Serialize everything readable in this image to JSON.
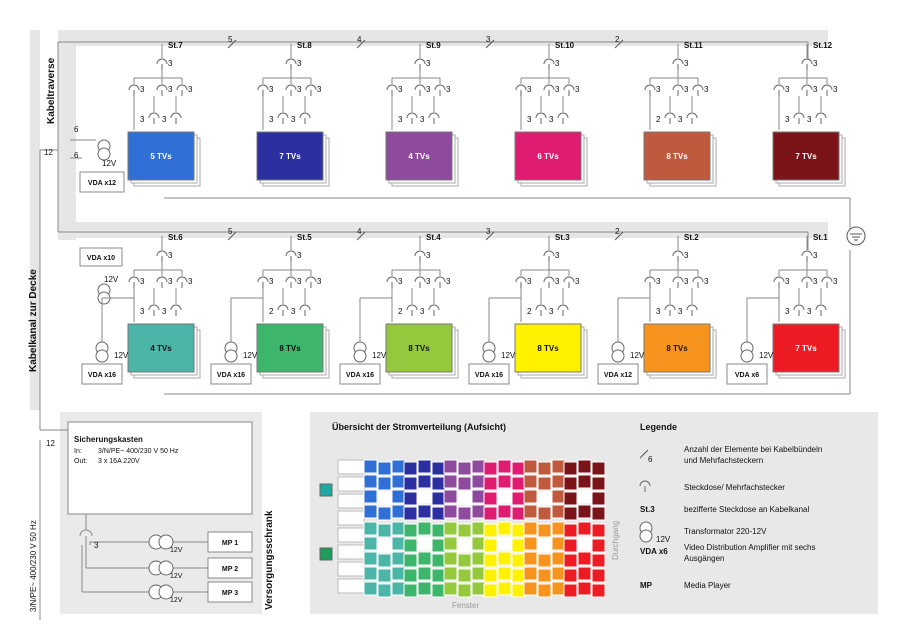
{
  "labels": {
    "kabeltraverse": "Kabeltraverse",
    "kabelkanal": "Kabelkanal zur Decke",
    "versorgungsschrank": "Versorgungsschrank",
    "mains_vertical": "3/N/PE~ 400/230 V 50 Hz",
    "voltage": "12V",
    "side_bundle": "6",
    "left_bundle": "12",
    "socket_bundle": "3"
  },
  "top_row": {
    "bundles": [
      "5",
      "4",
      "3",
      "2"
    ],
    "stations": [
      {
        "id": "St.7",
        "tvs": "5 TVs",
        "color": "#2F6FD6",
        "branch": [
          "3",
          "3"
        ]
      },
      {
        "id": "St.8",
        "tvs": "7 TVs",
        "color": "#2B2FA0",
        "branch": [
          "3",
          "3"
        ]
      },
      {
        "id": "St.9",
        "tvs": "4 TVs",
        "color": "#8E4A9C",
        "branch": [
          "3",
          "3"
        ]
      },
      {
        "id": "St.10",
        "tvs": "6 TVs",
        "color": "#E01C70",
        "branch": [
          "3",
          "3"
        ]
      },
      {
        "id": "St.11",
        "tvs": "8 TVs",
        "color": "#C05A3E",
        "branch": [
          "2",
          "3"
        ]
      },
      {
        "id": "St.12",
        "tvs": "7 TVs",
        "color": "#7A1419",
        "branch": [
          "3",
          "3"
        ]
      }
    ],
    "vda": "VDA x12"
  },
  "bottom_row": {
    "bundles": [
      "5",
      "4",
      "3",
      "2"
    ],
    "stations": [
      {
        "id": "St.6",
        "tvs": "4 TVs",
        "color": "#4BB5A8",
        "vda": "VDA x16",
        "branch": [
          "3",
          "3"
        ]
      },
      {
        "id": "St.5",
        "tvs": "8 TVs",
        "color": "#3DB56A",
        "vda": "VDA x16",
        "branch": [
          "2",
          "3"
        ]
      },
      {
        "id": "St.4",
        "tvs": "8 TVs",
        "color": "#95C93D",
        "vda": "VDA x16",
        "branch": [
          "2",
          "3"
        ]
      },
      {
        "id": "St.3",
        "tvs": "8 TVs",
        "color": "#FFF200",
        "vda": "VDA x16",
        "branch": [
          "2",
          "3"
        ]
      },
      {
        "id": "St.2",
        "tvs": "8 TVs",
        "color": "#F7941D",
        "vda": "VDA x12",
        "branch": [
          "3",
          "3"
        ]
      },
      {
        "id": "St.1",
        "tvs": "7 TVs",
        "color": "#ED1C24",
        "vda": "VDA x6",
        "branch": [
          "3",
          "3"
        ]
      }
    ],
    "vda_extra": "VDA x10"
  },
  "cabinet": {
    "title": "Sicherungskasten",
    "in_label": "In:",
    "in_value": "3/N/PE~ 400/230 V 50 Hz",
    "out_label": "Out:",
    "out_value": "3 x 16A 220V",
    "players": [
      "MP 1",
      "MP 2",
      "MP 3"
    ]
  },
  "overview": {
    "title": "Übersicht der Stromverteilung (Aufsicht)",
    "fenster": "Fenster",
    "durchgang": "Durchgang"
  },
  "legend": {
    "title": "Legende",
    "items": [
      {
        "icon": "bundle",
        "sample": "6",
        "text": "Anzahl der Elemente bei Kabelbündeln und Mehrfachsteckern"
      },
      {
        "icon": "socket",
        "sample": "",
        "text": "Steckdose/ Mehrfachstecker"
      },
      {
        "icon": "label",
        "sample": "St.3",
        "text": "bezifferte Steckdose an Kabelkanal"
      },
      {
        "icon": "transformer",
        "sample": "12V",
        "text": "Transformator 220-12V"
      },
      {
        "icon": "label",
        "sample": "VDA x6",
        "text": "Video Distribution Amplifier mit sechs Ausgängen"
      },
      {
        "icon": "label",
        "sample": "MP",
        "text": "Media Player"
      }
    ]
  },
  "colors": {
    "panel": "#EAEAEA",
    "line": "#888888",
    "overview_bg": "#E8E8E8"
  }
}
